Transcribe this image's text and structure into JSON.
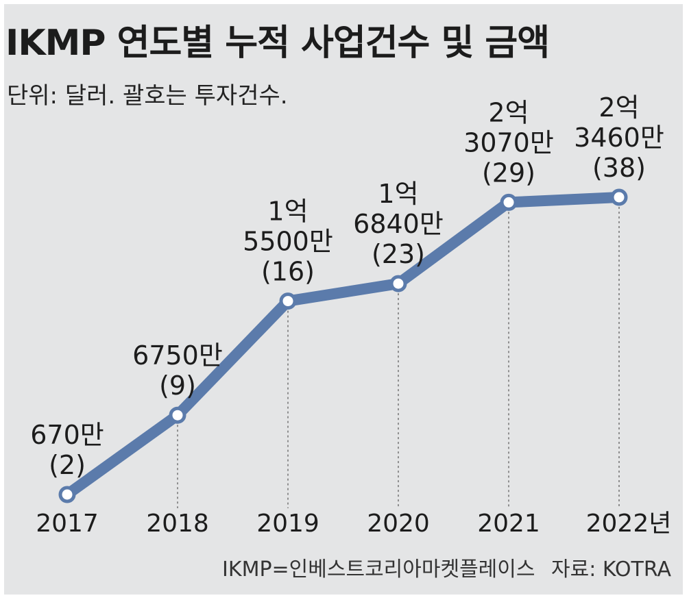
{
  "header": {
    "title": "IKMP 연도별 누적 사업건수 및 금액",
    "subtitle": "단위: 달러. 괄호는 투자건수."
  },
  "footer": {
    "note": "IKMP=인베스트코리아마켓플레이스",
    "source": "자료: KOTRA"
  },
  "colors": {
    "line": "#5b7bab",
    "marker_fill": "#ffffff",
    "background": "#e4e5e6"
  },
  "chart_data": {
    "type": "line",
    "title": "IKMP 연도별 누적 사업건수 및 금액",
    "x": [
      "2017",
      "2018",
      "2019",
      "2020",
      "2021",
      "2022년"
    ],
    "series": [
      {
        "values": [
          6700000,
          67500000,
          155000000,
          168400000,
          230700000,
          234600000
        ]
      }
    ],
    "counts": [
      2,
      9,
      16,
      23,
      29,
      38
    ],
    "value_labels": [
      [
        "670만",
        "(2)"
      ],
      [
        "6750만",
        "(9)"
      ],
      [
        "1억",
        "5500만",
        "(16)"
      ],
      [
        "1억",
        "6840만",
        "(23)"
      ],
      [
        "2억",
        "3070만",
        "(29)"
      ],
      [
        "2억",
        "3460만",
        "(38)"
      ]
    ],
    "ylim": [
      6700000,
      234600000
    ],
    "grid": "dashed vertical drop lines",
    "legend": "none"
  }
}
